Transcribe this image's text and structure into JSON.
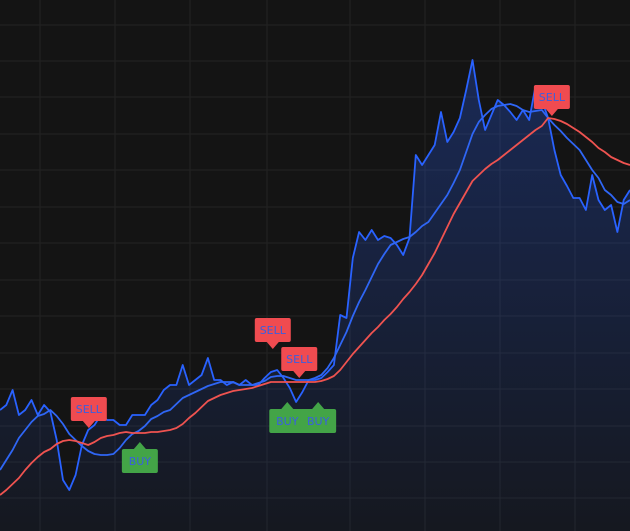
{
  "chart_data": {
    "type": "line",
    "x": [
      0,
      1,
      2,
      3,
      4,
      5,
      6,
      7,
      8,
      9,
      10,
      11,
      12,
      13,
      14,
      15,
      16,
      17,
      18,
      19,
      20,
      21,
      22,
      23,
      24,
      25,
      26,
      27,
      28,
      29,
      30,
      31,
      32,
      33,
      34,
      35,
      36,
      37,
      38,
      39,
      40,
      41,
      42,
      43,
      44,
      45,
      46,
      47,
      48,
      49,
      50,
      51,
      52,
      53,
      54,
      55,
      56,
      57,
      58,
      59,
      60,
      61,
      62,
      63,
      64,
      65,
      66,
      67,
      68,
      69,
      70,
      71,
      72,
      73,
      74,
      75,
      76,
      77,
      78,
      79,
      80,
      81,
      82,
      83,
      84,
      85,
      86,
      87,
      88,
      89,
      90,
      91,
      92,
      93,
      94,
      95,
      96,
      97,
      98,
      99,
      100
    ],
    "xlim": [
      0,
      100
    ],
    "ylim": [
      0,
      531
    ],
    "series": [
      {
        "color": "#2962ff",
        "area": true,
        "values": [
          121,
          126,
          141,
          116,
          121,
          131,
          116,
          126,
          119,
          91,
          51,
          41,
          56,
          86,
          101,
          106,
          116,
          111,
          111,
          106,
          106,
          116,
          116,
          116,
          126,
          131,
          141,
          146,
          146,
          166,
          146,
          151,
          156,
          173,
          151,
          151,
          146,
          149,
          146,
          151,
          146,
          146,
          153,
          159,
          161,
          153,
          143,
          129,
          139,
          151,
          151,
          153,
          159,
          166,
          216,
          213,
          273,
          299,
          291,
          301,
          291,
          295,
          293,
          286,
          276,
          293,
          376,
          366,
          376,
          386,
          419,
          389,
          399,
          413,
          441,
          471,
          431,
          401,
          416,
          431,
          426,
          419,
          411,
          421,
          411,
          445,
          431,
          413,
          381,
          356,
          345,
          333,
          333,
          321,
          356,
          331,
          321,
          326,
          299,
          331,
          341
        ]
      },
      {
        "color": "#2f66f5",
        "area": false,
        "values": [
          61,
          71,
          81,
          93,
          101,
          109,
          115,
          117,
          121,
          115,
          107,
          97,
          91,
          85,
          80,
          77,
          76,
          76,
          77,
          83,
          91,
          97,
          100,
          105,
          112,
          115,
          119,
          121,
          127,
          133,
          136,
          139,
          142,
          145,
          147,
          149,
          149,
          149,
          146,
          146,
          146,
          148,
          150,
          154,
          155,
          155,
          153,
          151,
          151,
          151,
          153,
          156,
          163,
          173,
          186,
          199,
          215,
          229,
          241,
          254,
          267,
          277,
          286,
          289,
          292,
          294,
          299,
          305,
          309,
          318,
          327,
          336,
          348,
          361,
          379,
          397,
          409,
          416,
          422,
          425,
          426,
          427,
          425,
          421,
          419,
          420,
          421,
          413,
          406,
          400,
          393,
          387,
          381,
          371,
          361,
          353,
          341,
          336,
          329,
          327,
          331
        ]
      },
      {
        "color": "#ef5350",
        "area": false,
        "values": [
          36,
          41,
          47,
          53,
          61,
          68,
          74,
          79,
          82,
          87,
          90,
          91,
          90,
          88,
          86,
          89,
          93,
          95,
          96,
          98,
          99,
          98,
          98,
          98,
          99,
          99,
          100,
          101,
          103,
          107,
          113,
          118,
          124,
          130,
          133,
          136,
          138,
          140,
          141,
          142,
          143,
          145,
          147,
          149,
          149,
          149,
          149,
          149,
          149,
          149,
          149,
          150,
          152,
          155,
          161,
          169,
          177,
          184,
          191,
          198,
          204,
          211,
          217,
          224,
          232,
          239,
          247,
          256,
          267,
          278,
          291,
          304,
          317,
          328,
          339,
          350,
          356,
          362,
          367,
          371,
          376,
          381,
          386,
          391,
          396,
          401,
          405,
          413,
          412,
          410,
          407,
          403,
          399,
          394,
          389,
          383,
          379,
          374,
          371,
          368,
          366
        ]
      }
    ],
    "signals": [
      {
        "label": "SELL",
        "x": 14.1,
        "y": 103
      },
      {
        "label": "BUY",
        "x": 22.2,
        "y": 89
      },
      {
        "label": "SELL",
        "x": 43.3,
        "y": 182
      },
      {
        "label": "BUY",
        "x": 45.6,
        "y": 129
      },
      {
        "label": "SELL",
        "x": 47.5,
        "y": 153
      },
      {
        "label": "BUY",
        "x": 50.5,
        "y": 129
      },
      {
        "label": "SELL",
        "x": 87.6,
        "y": 415
      }
    ],
    "signal_colors": {
      "SELL": "#f04b50",
      "BUY": "#43a447"
    },
    "signal_text_color": "#3a5fe0"
  }
}
